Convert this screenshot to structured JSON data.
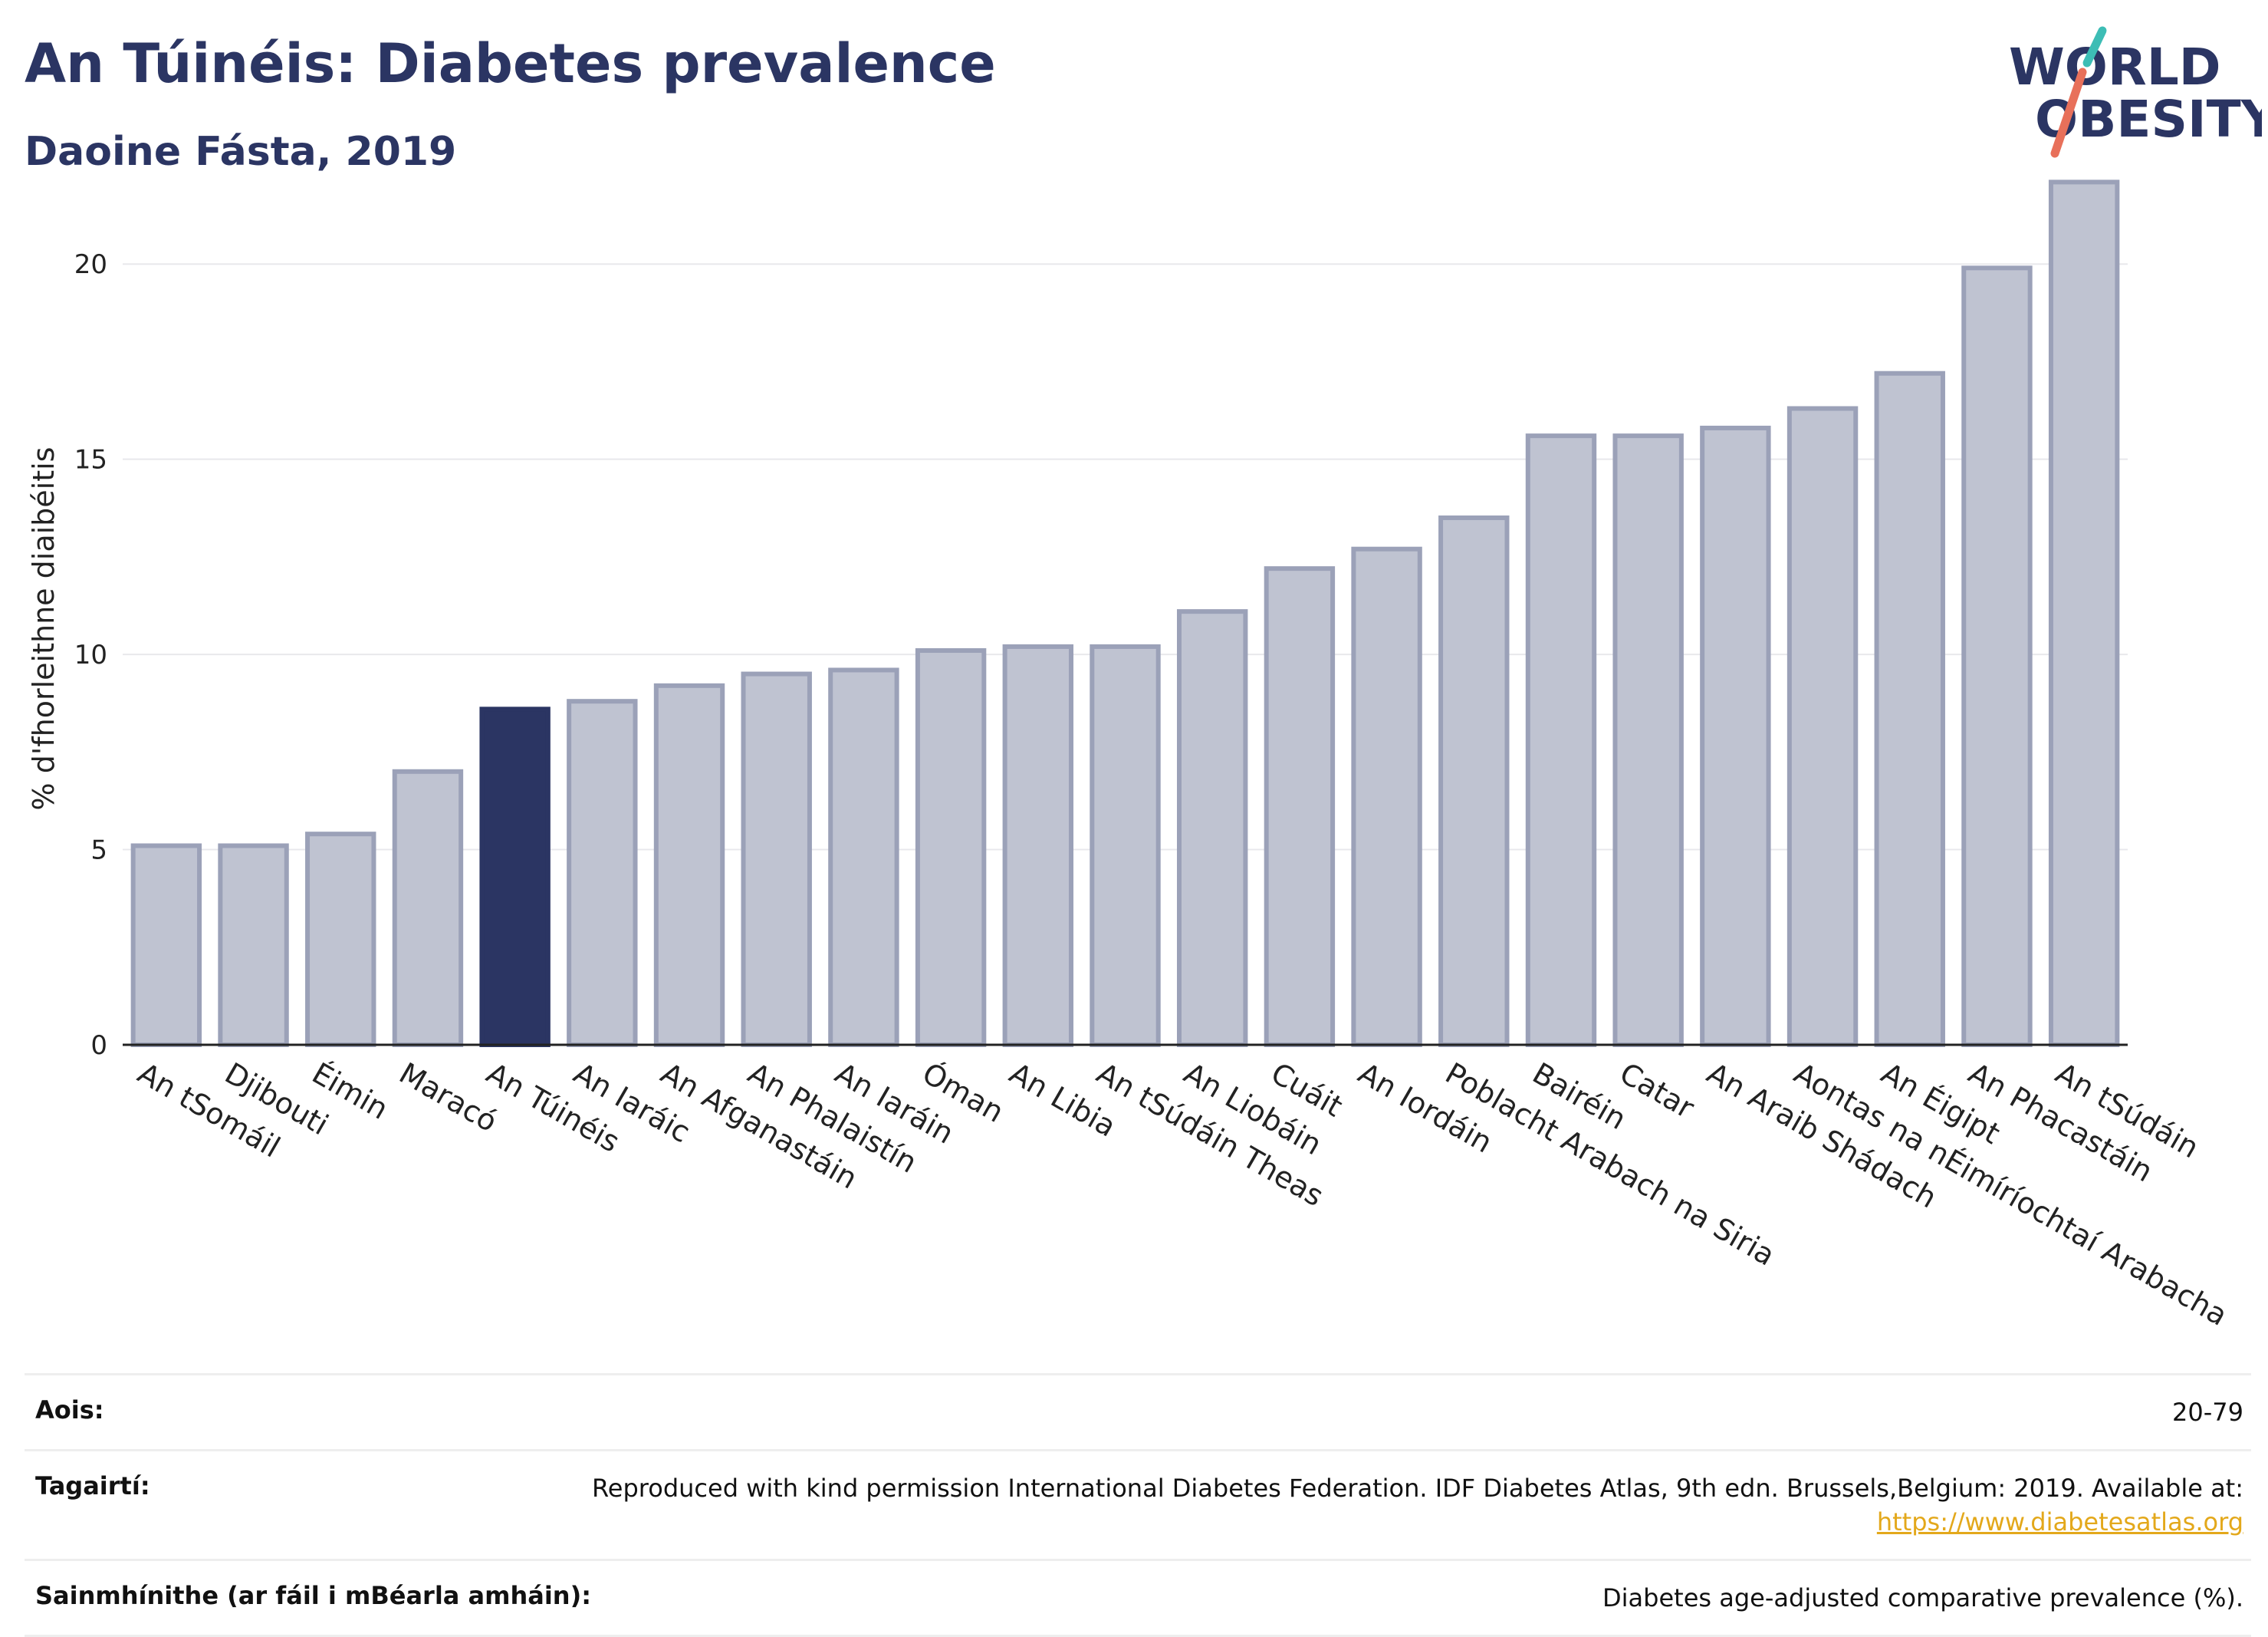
{
  "header": {
    "title": "An Túinéis: Diabetes prevalence",
    "subtitle": "Daoine Fásta, 2019"
  },
  "logo": {
    "line1": "WORLD",
    "line2": "OBESITY",
    "accent_colors": [
      "#3dbdb5",
      "#e8705a"
    ]
  },
  "chart_data": {
    "type": "bar",
    "ylabel": "% d'fhorleithne diaibéitis",
    "ylim": [
      0,
      22.5
    ],
    "yticks": [
      0,
      5,
      10,
      15,
      20
    ],
    "grid": true,
    "highlight_color": "#2b3563",
    "bar_color": "#bfc3d1",
    "bar_edge_color": "#9ba1b8",
    "highlight_index": 4,
    "categories": [
      "An tSomáil",
      "Djibouti",
      "Éimin",
      "Maracó",
      "An Túinéis",
      "An Iaráic",
      "An Afganastáin",
      "An Phalaistín",
      "An Iaráin",
      "Óman",
      "An Libia",
      "An tSúdáin Theas",
      "An Liobáin",
      "Cuáit",
      "An Iordáin",
      "Poblacht Arabach na Siria",
      "Bairéin",
      "Catar",
      "An Araib Shádach",
      "Aontas na nÉimíríochtaí Arabacha",
      "An Éigipt",
      "An Phacastáin",
      "An tSúdáin"
    ],
    "values": [
      5.1,
      5.1,
      5.4,
      7.0,
      8.6,
      8.8,
      9.2,
      9.5,
      9.6,
      10.1,
      10.2,
      10.2,
      11.1,
      12.2,
      12.7,
      13.5,
      15.6,
      15.6,
      15.8,
      16.3,
      17.2,
      19.9,
      22.1
    ]
  },
  "footer": {
    "rows": [
      {
        "label": "Aois:",
        "value": "20-79"
      },
      {
        "label": "Tagairtí:",
        "value": "Reproduced with kind permission International Diabetes Federation. IDF Diabetes Atlas, 9th edn. Brussels,Belgium: 2019. Available at:",
        "link": "https://www.diabetesatlas.org"
      },
      {
        "label": "Sainmhínithe (ar fáil i mBéarla amháin):",
        "value": "Diabetes age-adjusted comparative prevalence (%)."
      }
    ]
  }
}
